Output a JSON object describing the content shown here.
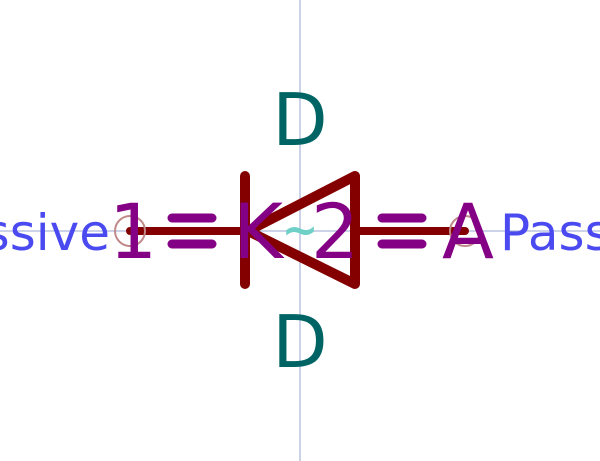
{
  "symbol": {
    "reference": "D",
    "value": "D",
    "value_suffix": "~",
    "pins": [
      {
        "number": "1",
        "name": "K",
        "electrical_type": "Passive"
      },
      {
        "number": "2",
        "name": "A",
        "electrical_type": "Passive"
      }
    ]
  },
  "colors": {
    "background": "#ffffff",
    "body": "#840000",
    "pin_number_name": "#840084",
    "field": "#006464",
    "pin_type": "#4a4af0",
    "crosshair": "#9aa4d0",
    "anchor": "#c08a8a",
    "value_tilde": "#6fd0c8"
  }
}
